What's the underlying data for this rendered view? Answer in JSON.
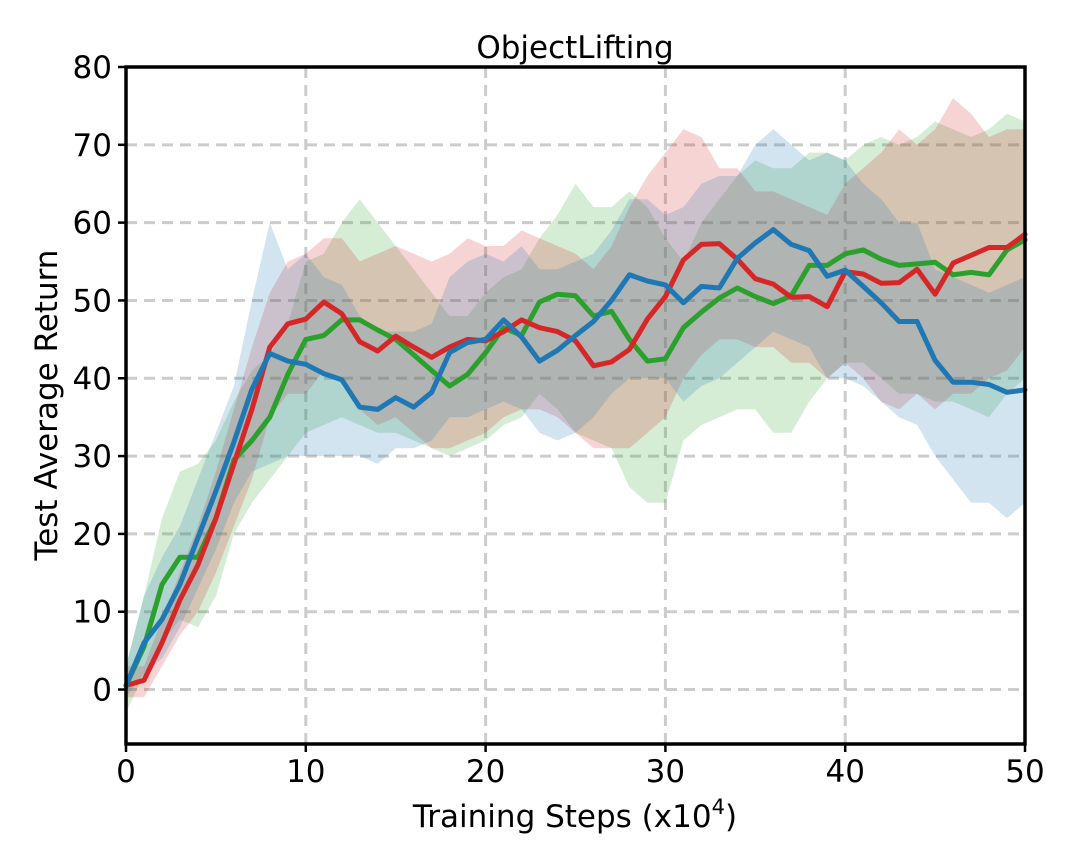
{
  "chart_data": {
    "type": "line",
    "title": "ObjectLifting",
    "xlabel": "Training Steps (x10",
    "xlabel_sup": "4",
    "xlabel_suffix": ")",
    "ylabel": "Test Average Return",
    "xlim": [
      0,
      50
    ],
    "ylim": [
      -7,
      80
    ],
    "xticks": [
      0,
      10,
      20,
      30,
      40,
      50
    ],
    "yticks": [
      0,
      10,
      20,
      30,
      40,
      50,
      60,
      70,
      80
    ],
    "grid": true,
    "grid_style": "dashed",
    "legend": "none",
    "x": [
      0,
      1,
      2,
      3,
      4,
      5,
      6,
      7,
      8,
      9,
      10,
      11,
      12,
      13,
      14,
      15,
      16,
      17,
      18,
      19,
      20,
      21,
      22,
      23,
      24,
      25,
      26,
      27,
      28,
      29,
      30,
      31,
      32,
      33,
      34,
      35,
      36,
      37,
      38,
      39,
      40,
      41,
      42,
      43,
      44,
      45,
      46,
      47,
      48,
      49,
      50
    ],
    "series": [
      {
        "color": "#2ca02c",
        "values": [
          0.5,
          5.5,
          13.5,
          17,
          17,
          22,
          29.5,
          32,
          35,
          40.5,
          45,
          45.5,
          47.5,
          47.5,
          46.2,
          45,
          43,
          41,
          39,
          40.5,
          43.3,
          46.5,
          45.5,
          49.8,
          50.8,
          50.6,
          48,
          48.6,
          45,
          42.2,
          42.5,
          46.5,
          48.5,
          50.3,
          51.6,
          50.5,
          49.6,
          50.6,
          54.5,
          54.5,
          56,
          56.5,
          55.3,
          54.5,
          54.7,
          54.9,
          53.3,
          53.6,
          53.3,
          56.5,
          57.8
        ],
        "upper": [
          3,
          12,
          22,
          28,
          29,
          32,
          37,
          41,
          43,
          47,
          55,
          56,
          60,
          63,
          60,
          57,
          54,
          51,
          48,
          48,
          51,
          53,
          54,
          58,
          61,
          65,
          62,
          62,
          64,
          62,
          58,
          55,
          60,
          63,
          66,
          68,
          67,
          67,
          69,
          69,
          68,
          70,
          71,
          70,
          71,
          73,
          72,
          71,
          72,
          74,
          73
        ],
        "lower": [
          -3,
          2,
          6,
          9,
          8,
          12,
          20,
          24,
          27,
          30,
          33,
          34,
          35,
          34,
          33,
          33,
          32,
          31,
          30,
          31,
          32,
          34,
          35,
          38,
          36,
          33,
          32,
          31,
          26,
          24,
          24,
          32,
          34,
          35,
          36,
          36,
          33,
          33,
          37,
          40,
          42,
          42,
          40,
          38,
          38,
          37,
          37,
          36,
          35,
          38,
          40
        ]
      },
      {
        "color": "#d62728",
        "values": [
          0.5,
          1.2,
          6,
          11.5,
          16,
          22,
          29,
          36,
          44,
          47,
          47.6,
          49.8,
          48.3,
          44.7,
          43.5,
          45.4,
          44,
          42.7,
          44,
          45,
          44.8,
          46,
          47.5,
          46.5,
          46,
          44.8,
          41.6,
          42.1,
          43.7,
          47.6,
          50.5,
          55.2,
          57.2,
          57.3,
          55.3,
          52.8,
          52.1,
          50.4,
          50.5,
          49.2,
          53.7,
          53.4,
          52.2,
          52.3,
          54,
          50.8,
          54.8,
          55.8,
          56.8,
          56.8,
          58.5
        ],
        "upper": [
          3,
          3,
          9,
          15,
          21,
          28,
          36,
          44,
          51,
          55,
          56,
          58,
          58,
          55,
          56,
          57,
          56,
          55,
          56,
          58,
          57,
          57,
          59,
          58,
          57,
          56,
          54,
          57,
          62,
          66,
          69,
          72,
          71,
          67,
          67,
          64,
          64,
          63,
          62,
          61,
          65,
          67,
          69,
          72,
          70,
          72,
          76,
          74,
          71,
          72,
          72
        ],
        "lower": [
          -1,
          -1,
          3,
          7,
          10,
          15,
          21,
          27,
          35,
          38,
          38,
          41,
          40,
          36,
          34,
          35,
          33,
          31,
          31,
          32,
          33,
          35,
          36,
          36,
          35,
          33,
          31,
          31,
          31,
          33,
          35,
          40,
          43,
          45,
          45,
          44,
          44,
          42,
          42,
          40,
          42,
          40,
          37,
          36,
          38,
          36,
          38,
          38,
          40,
          41,
          44
        ]
      },
      {
        "color": "#1f77b4",
        "values": [
          0.5,
          6,
          9,
          13.5,
          19.5,
          25.5,
          31.8,
          38.6,
          43.2,
          42.2,
          41.8,
          40.6,
          39.8,
          36.3,
          36,
          37.5,
          36.3,
          38.2,
          43.3,
          44.6,
          45,
          47.5,
          45.3,
          42.2,
          43.6,
          45.5,
          47.3,
          50,
          53.3,
          52.5,
          52,
          49.7,
          51.8,
          51.6,
          55.4,
          57.4,
          59.1,
          57.2,
          56.4,
          53.1,
          53.9,
          51.8,
          49.7,
          47.3,
          47.3,
          42.3,
          39.5,
          39.5,
          39.2,
          38.2,
          38.5
        ],
        "upper": [
          3,
          12,
          17,
          21,
          27,
          33,
          39,
          50,
          60,
          54,
          56,
          53,
          52,
          48,
          46,
          46,
          46,
          47,
          53,
          55,
          56,
          55,
          57,
          54,
          54,
          55,
          56,
          59,
          63,
          63,
          61,
          62,
          65,
          66,
          66,
          70,
          72,
          70,
          68,
          69,
          68,
          65,
          63,
          60,
          60,
          54,
          53,
          52,
          51,
          52,
          53
        ],
        "lower": [
          -1,
          2,
          4,
          8,
          13,
          18,
          24,
          28,
          29,
          30,
          30,
          30,
          30,
          30,
          29,
          31,
          31,
          32,
          35,
          35,
          36,
          37,
          36,
          33,
          32,
          33,
          35,
          38,
          40,
          40,
          40,
          37,
          39,
          40,
          42,
          44,
          46,
          45,
          44,
          40,
          40,
          39,
          37,
          35,
          34,
          30,
          27,
          24,
          24,
          22,
          24
        ]
      }
    ]
  }
}
